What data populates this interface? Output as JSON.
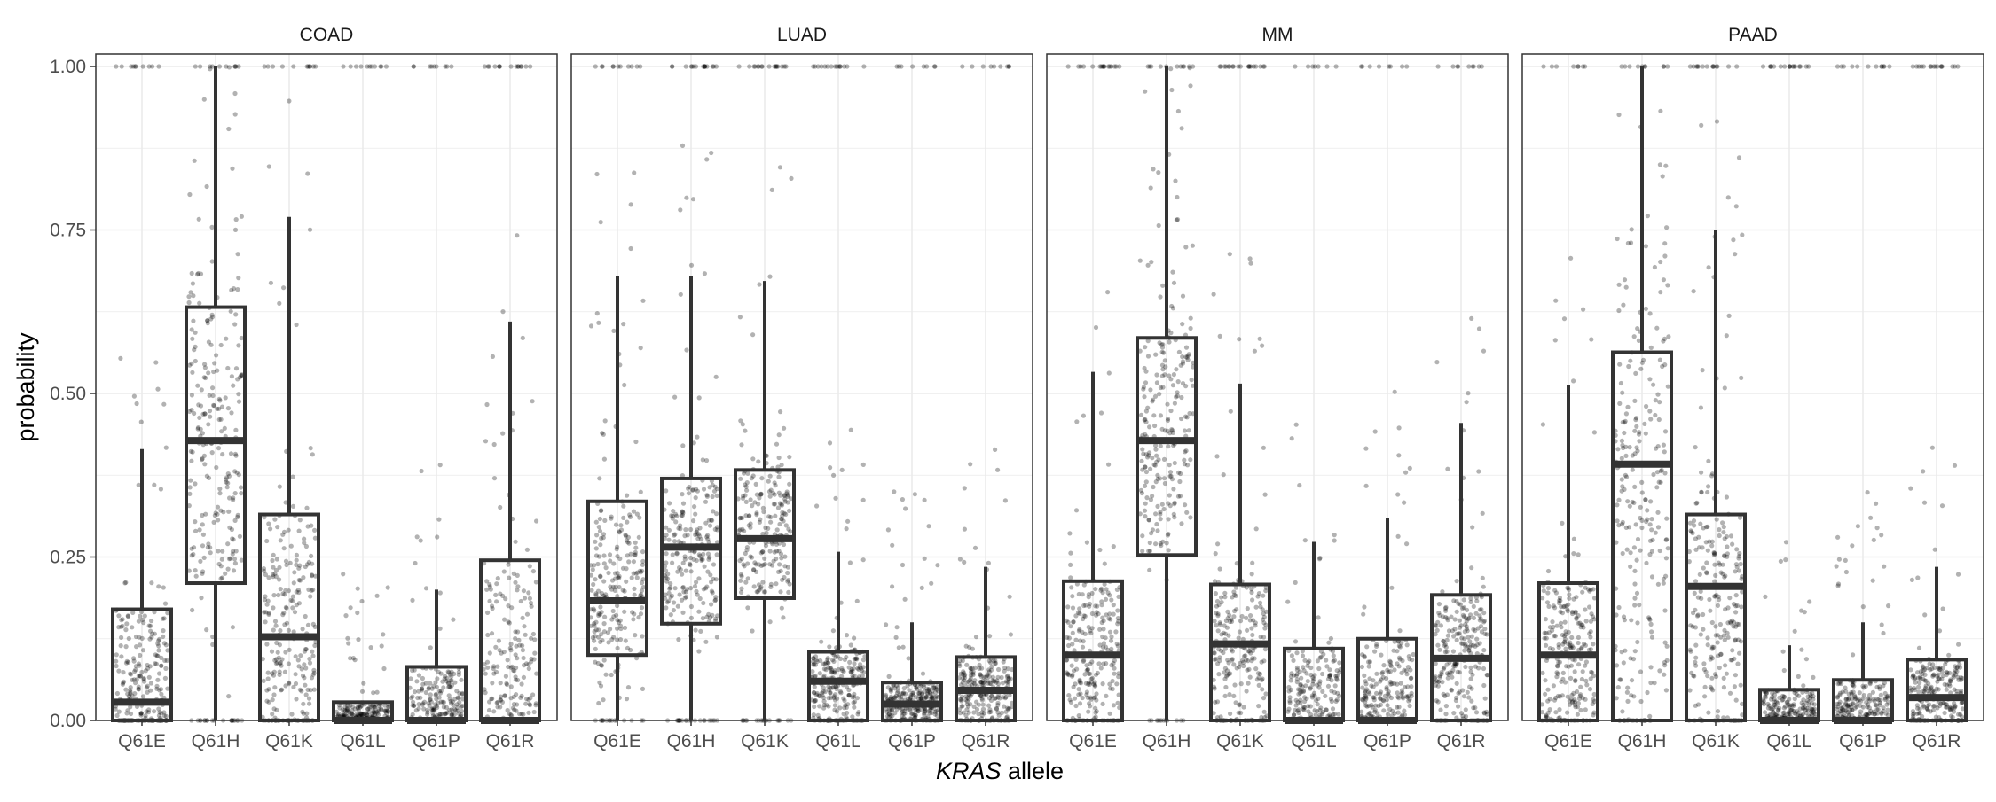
{
  "chart_data": {
    "type": "boxplot",
    "title": "",
    "xlabel_italic": "KRAS",
    "xlabel_rest": " allele",
    "ylabel": "probability",
    "ylim": [
      0,
      1
    ],
    "yticks": [
      0,
      0.25,
      0.5,
      0.75,
      1
    ],
    "ytick_labels": [
      "0.00",
      "0.25",
      "0.50",
      "0.75",
      "1.00"
    ],
    "grid": true,
    "categories": [
      "Q61E",
      "Q61H",
      "Q61K",
      "Q61L",
      "Q61P",
      "Q61R"
    ],
    "colors": {
      "box": "#333333",
      "point": "#000000",
      "grid": "#ebebeb",
      "panel_border": "#333333"
    },
    "facets": [
      {
        "name": "COAD",
        "boxes": [
          {
            "category": "Q61E",
            "q1": 0.0,
            "median": 0.028,
            "q3": 0.17,
            "whisker_low": 0.0,
            "whisker_high": 0.415
          },
          {
            "category": "Q61H",
            "q1": 0.21,
            "median": 0.428,
            "q3": 0.632,
            "whisker_low": 0.0,
            "whisker_high": 1.0
          },
          {
            "category": "Q61K",
            "q1": 0.0,
            "median": 0.128,
            "q3": 0.315,
            "whisker_low": 0.0,
            "whisker_high": 0.77
          },
          {
            "category": "Q61L",
            "q1": 0.0,
            "median": 0.0,
            "q3": 0.028,
            "whisker_low": 0.0,
            "whisker_high": 0.028
          },
          {
            "category": "Q61P",
            "q1": 0.0,
            "median": 0.0,
            "q3": 0.082,
            "whisker_low": 0.0,
            "whisker_high": 0.2
          },
          {
            "category": "Q61R",
            "q1": 0.0,
            "median": 0.0,
            "q3": 0.245,
            "whisker_low": 0.0,
            "whisker_high": 0.61
          }
        ]
      },
      {
        "name": "LUAD",
        "boxes": [
          {
            "category": "Q61E",
            "q1": 0.1,
            "median": 0.183,
            "q3": 0.335,
            "whisker_low": 0.0,
            "whisker_high": 0.68
          },
          {
            "category": "Q61H",
            "q1": 0.148,
            "median": 0.265,
            "q3": 0.37,
            "whisker_low": 0.0,
            "whisker_high": 0.68
          },
          {
            "category": "Q61K",
            "q1": 0.187,
            "median": 0.278,
            "q3": 0.383,
            "whisker_low": 0.0,
            "whisker_high": 0.672
          },
          {
            "category": "Q61L",
            "q1": 0.0,
            "median": 0.06,
            "q3": 0.105,
            "whisker_low": 0.0,
            "whisker_high": 0.258
          },
          {
            "category": "Q61P",
            "q1": 0.0,
            "median": 0.025,
            "q3": 0.058,
            "whisker_low": 0.0,
            "whisker_high": 0.15
          },
          {
            "category": "Q61R",
            "q1": 0.0,
            "median": 0.046,
            "q3": 0.097,
            "whisker_low": 0.0,
            "whisker_high": 0.235
          }
        ]
      },
      {
        "name": "MM",
        "boxes": [
          {
            "category": "Q61E",
            "q1": 0.0,
            "median": 0.1,
            "q3": 0.213,
            "whisker_low": 0.0,
            "whisker_high": 0.533
          },
          {
            "category": "Q61H",
            "q1": 0.253,
            "median": 0.428,
            "q3": 0.585,
            "whisker_low": 0.0,
            "whisker_high": 1.0
          },
          {
            "category": "Q61K",
            "q1": 0.0,
            "median": 0.117,
            "q3": 0.208,
            "whisker_low": 0.0,
            "whisker_high": 0.515
          },
          {
            "category": "Q61L",
            "q1": 0.0,
            "median": 0.0,
            "q3": 0.11,
            "whisker_low": 0.0,
            "whisker_high": 0.273
          },
          {
            "category": "Q61P",
            "q1": 0.0,
            "median": 0.0,
            "q3": 0.125,
            "whisker_low": 0.0,
            "whisker_high": 0.31
          },
          {
            "category": "Q61R",
            "q1": 0.0,
            "median": 0.095,
            "q3": 0.192,
            "whisker_low": 0.0,
            "whisker_high": 0.455
          }
        ]
      },
      {
        "name": "PAAD",
        "boxes": [
          {
            "category": "Q61E",
            "q1": 0.0,
            "median": 0.1,
            "q3": 0.21,
            "whisker_low": 0.0,
            "whisker_high": 0.513
          },
          {
            "category": "Q61H",
            "q1": 0.0,
            "median": 0.392,
            "q3": 0.563,
            "whisker_low": 0.0,
            "whisker_high": 1.0
          },
          {
            "category": "Q61K",
            "q1": 0.0,
            "median": 0.205,
            "q3": 0.315,
            "whisker_low": 0.0,
            "whisker_high": 0.75
          },
          {
            "category": "Q61L",
            "q1": 0.0,
            "median": 0.0,
            "q3": 0.047,
            "whisker_low": 0.0,
            "whisker_high": 0.115
          },
          {
            "category": "Q61P",
            "q1": 0.0,
            "median": 0.0,
            "q3": 0.062,
            "whisker_low": 0.0,
            "whisker_high": 0.15
          },
          {
            "category": "Q61R",
            "q1": 0.0,
            "median": 0.035,
            "q3": 0.093,
            "whisker_low": 0.0,
            "whisker_high": 0.235
          }
        ]
      }
    ]
  }
}
